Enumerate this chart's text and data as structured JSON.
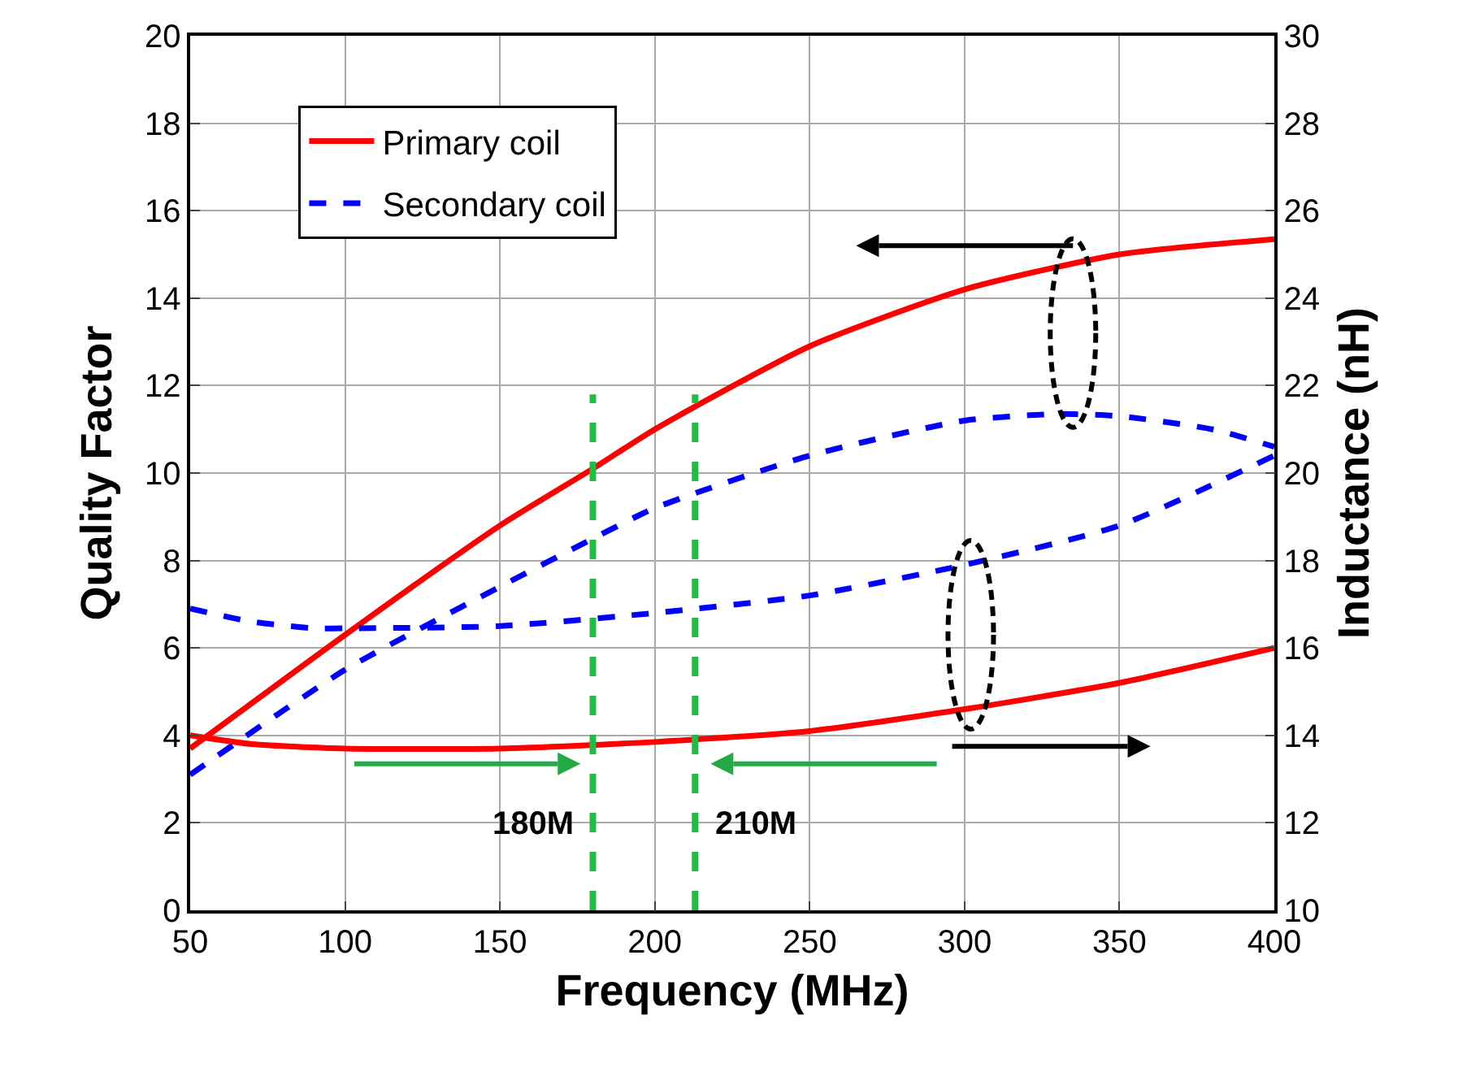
{
  "chart_data": {
    "type": "line",
    "xlabel": "Frequency (MHz)",
    "ylabel": "Quality Factor",
    "y2label": "Inductance (nH)",
    "xlim": [
      50,
      400
    ],
    "xticks": [
      50,
      100,
      150,
      200,
      250,
      300,
      350,
      400
    ],
    "ylim": [
      0,
      20
    ],
    "yticks": [
      0,
      2,
      4,
      6,
      8,
      10,
      12,
      14,
      16,
      18,
      20
    ],
    "y2lim": [
      10,
      30
    ],
    "y2ticks": [
      10,
      12,
      14,
      16,
      18,
      20,
      22,
      24,
      26,
      28,
      30
    ],
    "grid": true,
    "legend": "top left",
    "marker": "none",
    "series": [
      {
        "name": "Primary coil",
        "color": "#ff0000",
        "line_style": "solid",
        "x": [
          50,
          100,
          150,
          180,
          200,
          250,
          300,
          350,
          400
        ],
        "values": [
          3.7,
          6.3,
          8.8,
          10.1,
          11,
          12.9,
          14.2,
          15,
          15.35
        ]
      },
      {
        "name": "Secondary coil",
        "color": "#0000ff",
        "line_style": "dashed",
        "x": [
          50,
          100,
          150,
          180,
          200,
          250,
          300,
          330,
          350,
          380,
          400
        ],
        "values": [
          3.1,
          5.5,
          7.4,
          8.5,
          9.2,
          10.4,
          11.2,
          11.35,
          11.3,
          11,
          10.6
        ]
      },
      {
        "color": "#ff0000",
        "line_style": "solid",
        "axis": "y2",
        "x": [
          50,
          70,
          100,
          150,
          200,
          250,
          300,
          350,
          400
        ],
        "values": [
          14,
          13.8,
          13.7,
          13.7,
          13.85,
          14.1,
          14.6,
          15.2,
          16
        ]
      },
      {
        "color": "#0000ff",
        "line_style": "dashed",
        "axis": "y2",
        "x": [
          50,
          70,
          90,
          100,
          150,
          200,
          250,
          300,
          350,
          400
        ],
        "values": [
          16.9,
          16.6,
          16.45,
          16.45,
          16.5,
          16.8,
          17.2,
          17.9,
          18.8,
          20.4
        ]
      }
    ],
    "ref_lines": [
      {
        "axis": "x",
        "value": 180,
        "label": "180M",
        "color": "#22bb44",
        "line_style": "dashed"
      },
      {
        "axis": "x",
        "value": 213,
        "label": "210M",
        "color": "#22bb44",
        "line_style": "dashed"
      }
    ]
  }
}
